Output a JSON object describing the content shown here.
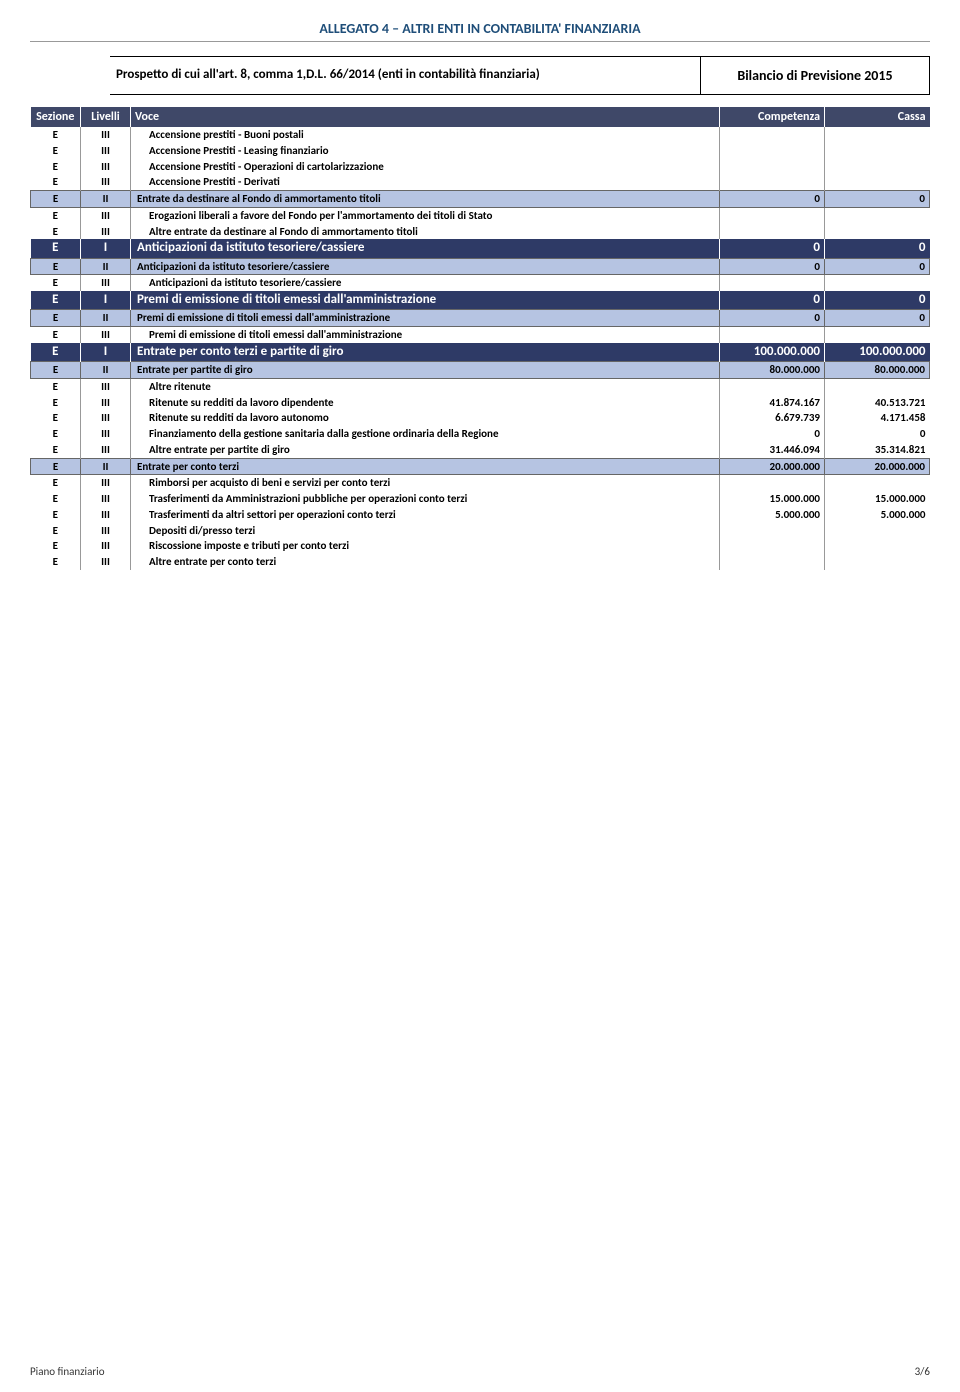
{
  "doc_title": "ALLEGATO 4 – ALTRI ENTI IN CONTABILITA' FINANZIARIA",
  "header_left": "Prospetto di cui all'art. 8, comma 1,D.L. 66/2014 (enti in contabilità finanziaria)",
  "header_right": "Bilancio di Previsione 2015",
  "columns": [
    "Sezione",
    "Livelli",
    "Voce",
    "Competenza",
    "Cassa"
  ],
  "rows": [
    {
      "lvl": 3,
      "sez": "E",
      "liv": "III",
      "voce": "Accensione prestiti - Buoni postali",
      "comp": "",
      "cassa": ""
    },
    {
      "lvl": 3,
      "sez": "E",
      "liv": "III",
      "voce": "Accensione Prestiti - Leasing finanziario",
      "comp": "",
      "cassa": ""
    },
    {
      "lvl": 3,
      "sez": "E",
      "liv": "III",
      "voce": "Accensione Prestiti - Operazioni di cartolarizzazione",
      "comp": "",
      "cassa": ""
    },
    {
      "lvl": 3,
      "sez": "E",
      "liv": "III",
      "voce": "Accensione Prestiti - Derivati",
      "comp": "",
      "cassa": ""
    },
    {
      "lvl": 2,
      "sez": "E",
      "liv": "II",
      "voce": "Entrate da destinare al Fondo di ammortamento titoli",
      "comp": "0",
      "cassa": "0"
    },
    {
      "lvl": 3,
      "sez": "E",
      "liv": "III",
      "voce": "Erogazioni liberali a favore del Fondo per l'ammortamento dei titoli di Stato",
      "comp": "",
      "cassa": ""
    },
    {
      "lvl": 3,
      "sez": "E",
      "liv": "III",
      "voce": "Altre entrate da destinare al Fondo di ammortamento titoli",
      "comp": "",
      "cassa": ""
    },
    {
      "lvl": 1,
      "sez": "E",
      "liv": "I",
      "voce": "Anticipazioni da istituto tesoriere/cassiere",
      "comp": "0",
      "cassa": "0"
    },
    {
      "lvl": 2,
      "sez": "E",
      "liv": "II",
      "voce": "Anticipazioni da istituto tesoriere/cassiere",
      "comp": "0",
      "cassa": "0"
    },
    {
      "lvl": 3,
      "sez": "E",
      "liv": "III",
      "voce": "Anticipazioni da istituto tesoriere/cassiere",
      "comp": "",
      "cassa": ""
    },
    {
      "lvl": 1,
      "sez": "E",
      "liv": "I",
      "voce": "Premi di emissione di titoli emessi dall'amministrazione",
      "comp": "0",
      "cassa": "0"
    },
    {
      "lvl": 2,
      "sez": "E",
      "liv": "II",
      "voce": "Premi di emissione di titoli emessi dall'amministrazione",
      "comp": "0",
      "cassa": "0"
    },
    {
      "lvl": 3,
      "sez": "E",
      "liv": "III",
      "voce": "Premi di emissione di titoli emessi dall'amministrazione",
      "comp": "",
      "cassa": ""
    },
    {
      "lvl": 1,
      "sez": "E",
      "liv": "I",
      "voce": "Entrate per conto terzi e partite di giro",
      "comp": "100.000.000",
      "cassa": "100.000.000"
    },
    {
      "lvl": 2,
      "sez": "E",
      "liv": "II",
      "voce": "Entrate per partite di giro",
      "comp": "80.000.000",
      "cassa": "80.000.000"
    },
    {
      "lvl": 3,
      "sez": "E",
      "liv": "III",
      "voce": "Altre ritenute",
      "comp": "",
      "cassa": ""
    },
    {
      "lvl": 3,
      "sez": "E",
      "liv": "III",
      "voce": "Ritenute su redditi da lavoro dipendente",
      "comp": "41.874.167",
      "cassa": "40.513.721"
    },
    {
      "lvl": 3,
      "sez": "E",
      "liv": "III",
      "voce": "Ritenute su redditi da lavoro autonomo",
      "comp": "6.679.739",
      "cassa": "4.171.458"
    },
    {
      "lvl": 3,
      "sez": "E",
      "liv": "III",
      "voce": "Finanziamento della gestione sanitaria dalla gestione ordinaria della Regione",
      "comp": "0",
      "cassa": "0"
    },
    {
      "lvl": 3,
      "sez": "E",
      "liv": "III",
      "voce": "Altre entrate per partite di giro",
      "comp": "31.446.094",
      "cassa": "35.314.821"
    },
    {
      "lvl": 2,
      "sez": "E",
      "liv": "II",
      "voce": "Entrate per conto terzi",
      "comp": "20.000.000",
      "cassa": "20.000.000"
    },
    {
      "lvl": 3,
      "sez": "E",
      "liv": "III",
      "voce": "Rimborsi per acquisto di beni e servizi per conto terzi",
      "comp": "",
      "cassa": ""
    },
    {
      "lvl": 3,
      "sez": "E",
      "liv": "III",
      "voce": "Trasferimenti da Amministrazioni pubbliche per operazioni conto terzi",
      "comp": "15.000.000",
      "cassa": "15.000.000"
    },
    {
      "lvl": 3,
      "sez": "E",
      "liv": "III",
      "voce": "Trasferimenti da altri settori per operazioni conto terzi",
      "comp": "5.000.000",
      "cassa": "5.000.000"
    },
    {
      "lvl": 3,
      "sez": "E",
      "liv": "III",
      "voce": "Depositi di/presso terzi",
      "comp": "",
      "cassa": ""
    },
    {
      "lvl": 3,
      "sez": "E",
      "liv": "III",
      "voce": "Riscossione imposte e tributi per conto terzi",
      "comp": "",
      "cassa": ""
    },
    {
      "lvl": 3,
      "sez": "E",
      "liv": "III",
      "voce": "Altre entrate per conto terzi",
      "comp": "",
      "cassa": ""
    }
  ],
  "footer_left": "Piano finanziario",
  "footer_right": "3/6",
  "colors": {
    "title_color": "#1f4e79",
    "th_bg": "#3f4868",
    "level1_bg": "#2e3a66",
    "level2_bg": "#b6c4e2"
  }
}
